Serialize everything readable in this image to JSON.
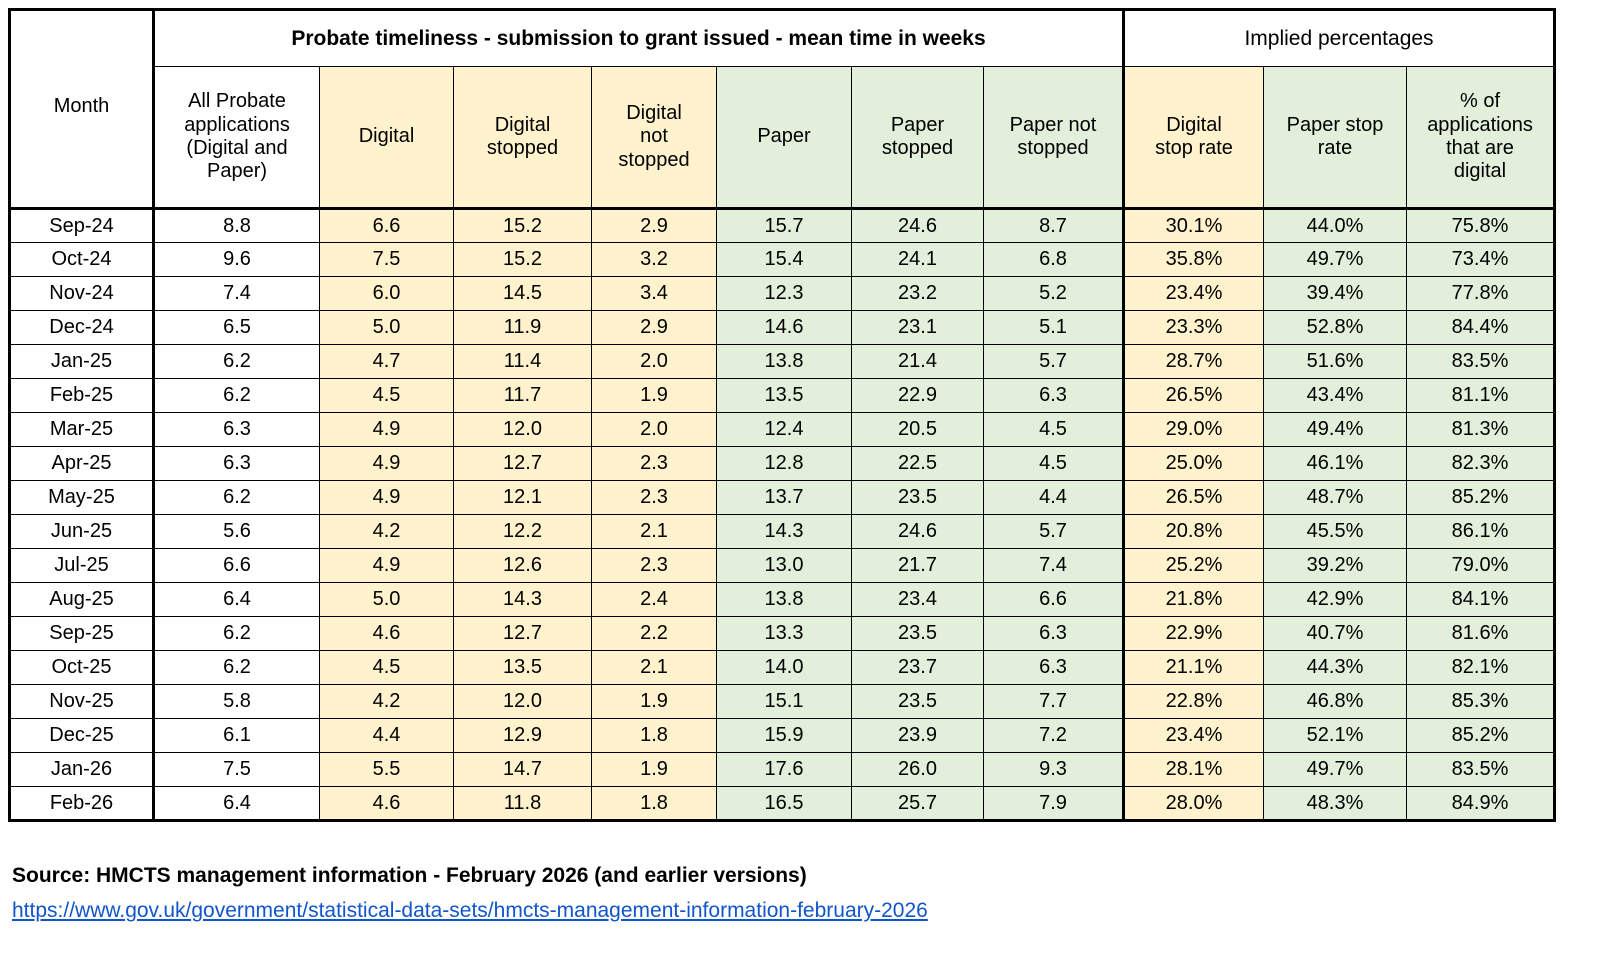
{
  "colors": {
    "fill_yellow": "#FFF2CC",
    "fill_green": "#E2EFDA",
    "border": "#000000",
    "link_blue": "#1155CC"
  },
  "table": {
    "group_headers": [
      {
        "label": "Probate timeliness - submission to grant issued - mean time in weeks"
      },
      {
        "label": "Implied percentages"
      }
    ],
    "columns": [
      {
        "label": "Month",
        "fill": "none"
      },
      {
        "label": "All Probate\napplications\n(Digital and\nPaper)",
        "fill": "none"
      },
      {
        "label": "Digital",
        "fill": "yellow"
      },
      {
        "label": "Digital\nstopped",
        "fill": "yellow"
      },
      {
        "label": "Digital\nnot\nstopped",
        "fill": "yellow"
      },
      {
        "label": "Paper",
        "fill": "green"
      },
      {
        "label": "Paper\nstopped",
        "fill": "green"
      },
      {
        "label": "Paper not\nstopped",
        "fill": "green"
      },
      {
        "label": "Digital\nstop rate",
        "fill": "yellow"
      },
      {
        "label": "Paper stop\nrate",
        "fill": "green"
      },
      {
        "label": "% of\napplications\nthat are\ndigital",
        "fill": "green"
      }
    ],
    "rows": [
      {
        "month": "Sep-24",
        "values": [
          "8.8",
          "6.6",
          "15.2",
          "2.9",
          "15.7",
          "24.6",
          "8.7",
          "30.1%",
          "44.0%",
          "75.8%"
        ]
      },
      {
        "month": "Oct-24",
        "values": [
          "9.6",
          "7.5",
          "15.2",
          "3.2",
          "15.4",
          "24.1",
          "6.8",
          "35.8%",
          "49.7%",
          "73.4%"
        ]
      },
      {
        "month": "Nov-24",
        "values": [
          "7.4",
          "6.0",
          "14.5",
          "3.4",
          "12.3",
          "23.2",
          "5.2",
          "23.4%",
          "39.4%",
          "77.8%"
        ]
      },
      {
        "month": "Dec-24",
        "values": [
          "6.5",
          "5.0",
          "11.9",
          "2.9",
          "14.6",
          "23.1",
          "5.1",
          "23.3%",
          "52.8%",
          "84.4%"
        ]
      },
      {
        "month": "Jan-25",
        "values": [
          "6.2",
          "4.7",
          "11.4",
          "2.0",
          "13.8",
          "21.4",
          "5.7",
          "28.7%",
          "51.6%",
          "83.5%"
        ]
      },
      {
        "month": "Feb-25",
        "values": [
          "6.2",
          "4.5",
          "11.7",
          "1.9",
          "13.5",
          "22.9",
          "6.3",
          "26.5%",
          "43.4%",
          "81.1%"
        ]
      },
      {
        "month": "Mar-25",
        "values": [
          "6.3",
          "4.9",
          "12.0",
          "2.0",
          "12.4",
          "20.5",
          "4.5",
          "29.0%",
          "49.4%",
          "81.3%"
        ]
      },
      {
        "month": "Apr-25",
        "values": [
          "6.3",
          "4.9",
          "12.7",
          "2.3",
          "12.8",
          "22.5",
          "4.5",
          "25.0%",
          "46.1%",
          "82.3%"
        ]
      },
      {
        "month": "May-25",
        "values": [
          "6.2",
          "4.9",
          "12.1",
          "2.3",
          "13.7",
          "23.5",
          "4.4",
          "26.5%",
          "48.7%",
          "85.2%"
        ]
      },
      {
        "month": "Jun-25",
        "values": [
          "5.6",
          "4.2",
          "12.2",
          "2.1",
          "14.3",
          "24.6",
          "5.7",
          "20.8%",
          "45.5%",
          "86.1%"
        ]
      },
      {
        "month": "Jul-25",
        "values": [
          "6.6",
          "4.9",
          "12.6",
          "2.3",
          "13.0",
          "21.7",
          "7.4",
          "25.2%",
          "39.2%",
          "79.0%"
        ]
      },
      {
        "month": "Aug-25",
        "values": [
          "6.4",
          "5.0",
          "14.3",
          "2.4",
          "13.8",
          "23.4",
          "6.6",
          "21.8%",
          "42.9%",
          "84.1%"
        ]
      },
      {
        "month": "Sep-25",
        "values": [
          "6.2",
          "4.6",
          "12.7",
          "2.2",
          "13.3",
          "23.5",
          "6.3",
          "22.9%",
          "40.7%",
          "81.6%"
        ]
      },
      {
        "month": "Oct-25",
        "values": [
          "6.2",
          "4.5",
          "13.5",
          "2.1",
          "14.0",
          "23.7",
          "6.3",
          "21.1%",
          "44.3%",
          "82.1%"
        ]
      },
      {
        "month": "Nov-25",
        "values": [
          "5.8",
          "4.2",
          "12.0",
          "1.9",
          "15.1",
          "23.5",
          "7.7",
          "22.8%",
          "46.8%",
          "85.3%"
        ]
      },
      {
        "month": "Dec-25",
        "values": [
          "6.1",
          "4.4",
          "12.9",
          "1.8",
          "15.9",
          "23.9",
          "7.2",
          "23.4%",
          "52.1%",
          "85.2%"
        ]
      },
      {
        "month": "Jan-26",
        "values": [
          "7.5",
          "5.5",
          "14.7",
          "1.9",
          "17.6",
          "26.0",
          "9.3",
          "28.1%",
          "49.7%",
          "83.5%"
        ]
      },
      {
        "month": "Feb-26",
        "values": [
          "6.4",
          "4.6",
          "11.8",
          "1.8",
          "16.5",
          "25.7",
          "7.9",
          "28.0%",
          "48.3%",
          "84.9%"
        ]
      }
    ]
  },
  "footer": {
    "source": "Source: HMCTS management information - February 2026 (and earlier versions)",
    "link": "https://www.gov.uk/government/statistical-data-sets/hmcts-management-information-february-2026"
  }
}
